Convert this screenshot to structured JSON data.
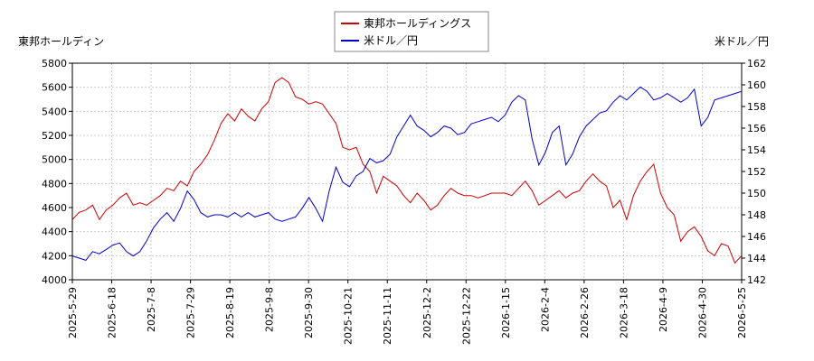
{
  "chart_data": {
    "type": "line",
    "left_axis_title": "東邦ホールディン",
    "right_axis_title": "米ドル／円",
    "left_ylim": [
      4000,
      5800
    ],
    "left_ticks": [
      4000,
      4200,
      4400,
      4600,
      4800,
      5000,
      5200,
      5400,
      5600,
      5800
    ],
    "right_ylim": [
      142,
      162
    ],
    "right_ticks": [
      142,
      144,
      146,
      148,
      150,
      152,
      154,
      156,
      158,
      160,
      162
    ],
    "x_ticks": [
      "2025-5-29",
      "2025-6-18",
      "2025-7-8",
      "2025-7-29",
      "2025-8-19",
      "2025-9-8",
      "2025-9-30",
      "2025-10-21",
      "2025-11-11",
      "2025-12-2",
      "2025-12-22",
      "2026-1-15",
      "2026-2-4",
      "2026-2-26",
      "2026-3-18",
      "2026-4-9",
      "2026-4-30",
      "2026-5-25"
    ],
    "grid": true,
    "legend_position": "top-center",
    "series": [
      {
        "name": "東邦ホールディングス",
        "axis": "left",
        "color": "#cc0000",
        "points": [
          [
            0,
            4500
          ],
          [
            2,
            4560
          ],
          [
            4,
            4580
          ],
          [
            6,
            4620
          ],
          [
            8,
            4500
          ],
          [
            10,
            4580
          ],
          [
            12,
            4620
          ],
          [
            14,
            4680
          ],
          [
            16,
            4720
          ],
          [
            18,
            4620
          ],
          [
            20,
            4640
          ],
          [
            22,
            4620
          ],
          [
            24,
            4660
          ],
          [
            26,
            4700
          ],
          [
            28,
            4760
          ],
          [
            30,
            4740
          ],
          [
            32,
            4820
          ],
          [
            34,
            4780
          ],
          [
            36,
            4900
          ],
          [
            38,
            4960
          ],
          [
            40,
            5040
          ],
          [
            42,
            5160
          ],
          [
            44,
            5300
          ],
          [
            46,
            5380
          ],
          [
            48,
            5320
          ],
          [
            50,
            5420
          ],
          [
            52,
            5360
          ],
          [
            54,
            5320
          ],
          [
            56,
            5420
          ],
          [
            58,
            5480
          ],
          [
            60,
            5640
          ],
          [
            62,
            5680
          ],
          [
            64,
            5640
          ],
          [
            66,
            5520
          ],
          [
            68,
            5500
          ],
          [
            70,
            5460
          ],
          [
            72,
            5480
          ],
          [
            74,
            5460
          ],
          [
            76,
            5380
          ],
          [
            78,
            5300
          ],
          [
            80,
            5100
          ],
          [
            82,
            5080
          ],
          [
            84,
            5100
          ],
          [
            86,
            4960
          ],
          [
            88,
            4900
          ],
          [
            90,
            4720
          ],
          [
            92,
            4860
          ],
          [
            94,
            4820
          ],
          [
            96,
            4780
          ],
          [
            98,
            4700
          ],
          [
            100,
            4640
          ],
          [
            102,
            4720
          ],
          [
            104,
            4660
          ],
          [
            106,
            4580
          ],
          [
            108,
            4620
          ],
          [
            110,
            4700
          ],
          [
            112,
            4760
          ],
          [
            114,
            4720
          ],
          [
            116,
            4700
          ],
          [
            118,
            4700
          ],
          [
            120,
            4680
          ],
          [
            122,
            4700
          ],
          [
            124,
            4720
          ],
          [
            126,
            4720
          ],
          [
            128,
            4720
          ],
          [
            130,
            4700
          ],
          [
            132,
            4760
          ],
          [
            134,
            4820
          ],
          [
            136,
            4740
          ],
          [
            138,
            4620
          ],
          [
            140,
            4660
          ],
          [
            142,
            4700
          ],
          [
            144,
            4740
          ],
          [
            146,
            4680
          ],
          [
            148,
            4720
          ],
          [
            150,
            4740
          ],
          [
            152,
            4820
          ],
          [
            154,
            4880
          ],
          [
            156,
            4820
          ],
          [
            158,
            4780
          ],
          [
            160,
            4600
          ],
          [
            162,
            4660
          ],
          [
            164,
            4500
          ],
          [
            166,
            4700
          ],
          [
            168,
            4820
          ],
          [
            170,
            4900
          ],
          [
            172,
            4960
          ],
          [
            174,
            4720
          ],
          [
            176,
            4600
          ],
          [
            178,
            4540
          ],
          [
            180,
            4320
          ],
          [
            182,
            4400
          ],
          [
            184,
            4440
          ],
          [
            186,
            4360
          ],
          [
            188,
            4240
          ],
          [
            190,
            4200
          ],
          [
            192,
            4300
          ],
          [
            194,
            4280
          ],
          [
            196,
            4140
          ],
          [
            198,
            4200
          ]
        ]
      },
      {
        "name": "米ドル／円",
        "axis": "right",
        "color": "#0000cc",
        "points": [
          [
            0,
            144.2
          ],
          [
            2,
            144.0
          ],
          [
            4,
            143.8
          ],
          [
            6,
            144.6
          ],
          [
            8,
            144.4
          ],
          [
            10,
            144.8
          ],
          [
            12,
            145.2
          ],
          [
            14,
            145.4
          ],
          [
            16,
            144.6
          ],
          [
            18,
            144.2
          ],
          [
            20,
            144.6
          ],
          [
            22,
            145.6
          ],
          [
            24,
            146.8
          ],
          [
            26,
            147.6
          ],
          [
            28,
            148.2
          ],
          [
            30,
            147.4
          ],
          [
            32,
            148.6
          ],
          [
            34,
            150.2
          ],
          [
            36,
            149.4
          ],
          [
            38,
            148.2
          ],
          [
            40,
            147.8
          ],
          [
            42,
            148.0
          ],
          [
            44,
            148.0
          ],
          [
            46,
            147.8
          ],
          [
            48,
            148.2
          ],
          [
            50,
            147.8
          ],
          [
            52,
            148.2
          ],
          [
            54,
            147.8
          ],
          [
            56,
            148.0
          ],
          [
            58,
            148.2
          ],
          [
            60,
            147.6
          ],
          [
            62,
            147.4
          ],
          [
            64,
            147.6
          ],
          [
            66,
            147.8
          ],
          [
            68,
            148.6
          ],
          [
            70,
            149.6
          ],
          [
            72,
            148.6
          ],
          [
            74,
            147.4
          ],
          [
            76,
            150.2
          ],
          [
            78,
            152.4
          ],
          [
            80,
            151.0
          ],
          [
            82,
            150.6
          ],
          [
            84,
            151.6
          ],
          [
            86,
            152.0
          ],
          [
            88,
            153.2
          ],
          [
            90,
            152.8
          ],
          [
            92,
            153.0
          ],
          [
            94,
            153.6
          ],
          [
            96,
            155.2
          ],
          [
            98,
            156.2
          ],
          [
            100,
            157.2
          ],
          [
            102,
            156.2
          ],
          [
            104,
            155.8
          ],
          [
            106,
            155.2
          ],
          [
            108,
            155.6
          ],
          [
            110,
            156.2
          ],
          [
            112,
            156.0
          ],
          [
            114,
            155.4
          ],
          [
            116,
            155.6
          ],
          [
            118,
            156.4
          ],
          [
            120,
            156.6
          ],
          [
            122,
            156.8
          ],
          [
            124,
            157.0
          ],
          [
            126,
            156.6
          ],
          [
            128,
            157.2
          ],
          [
            130,
            158.4
          ],
          [
            132,
            159.0
          ],
          [
            134,
            158.6
          ],
          [
            136,
            155.0
          ],
          [
            138,
            152.6
          ],
          [
            140,
            153.8
          ],
          [
            142,
            155.6
          ],
          [
            144,
            156.2
          ],
          [
            146,
            152.6
          ],
          [
            148,
            153.6
          ],
          [
            150,
            155.2
          ],
          [
            152,
            156.2
          ],
          [
            154,
            156.8
          ],
          [
            156,
            157.4
          ],
          [
            158,
            157.6
          ],
          [
            160,
            158.4
          ],
          [
            162,
            159.0
          ],
          [
            164,
            158.6
          ],
          [
            166,
            159.2
          ],
          [
            168,
            159.8
          ],
          [
            170,
            159.4
          ],
          [
            172,
            158.6
          ],
          [
            174,
            158.8
          ],
          [
            176,
            159.2
          ],
          [
            178,
            158.8
          ],
          [
            180,
            158.4
          ],
          [
            182,
            158.8
          ],
          [
            184,
            159.6
          ],
          [
            186,
            156.2
          ],
          [
            188,
            157.0
          ],
          [
            190,
            158.6
          ],
          [
            192,
            158.8
          ],
          [
            194,
            159.0
          ],
          [
            196,
            159.2
          ],
          [
            198,
            159.4
          ]
        ]
      }
    ]
  }
}
